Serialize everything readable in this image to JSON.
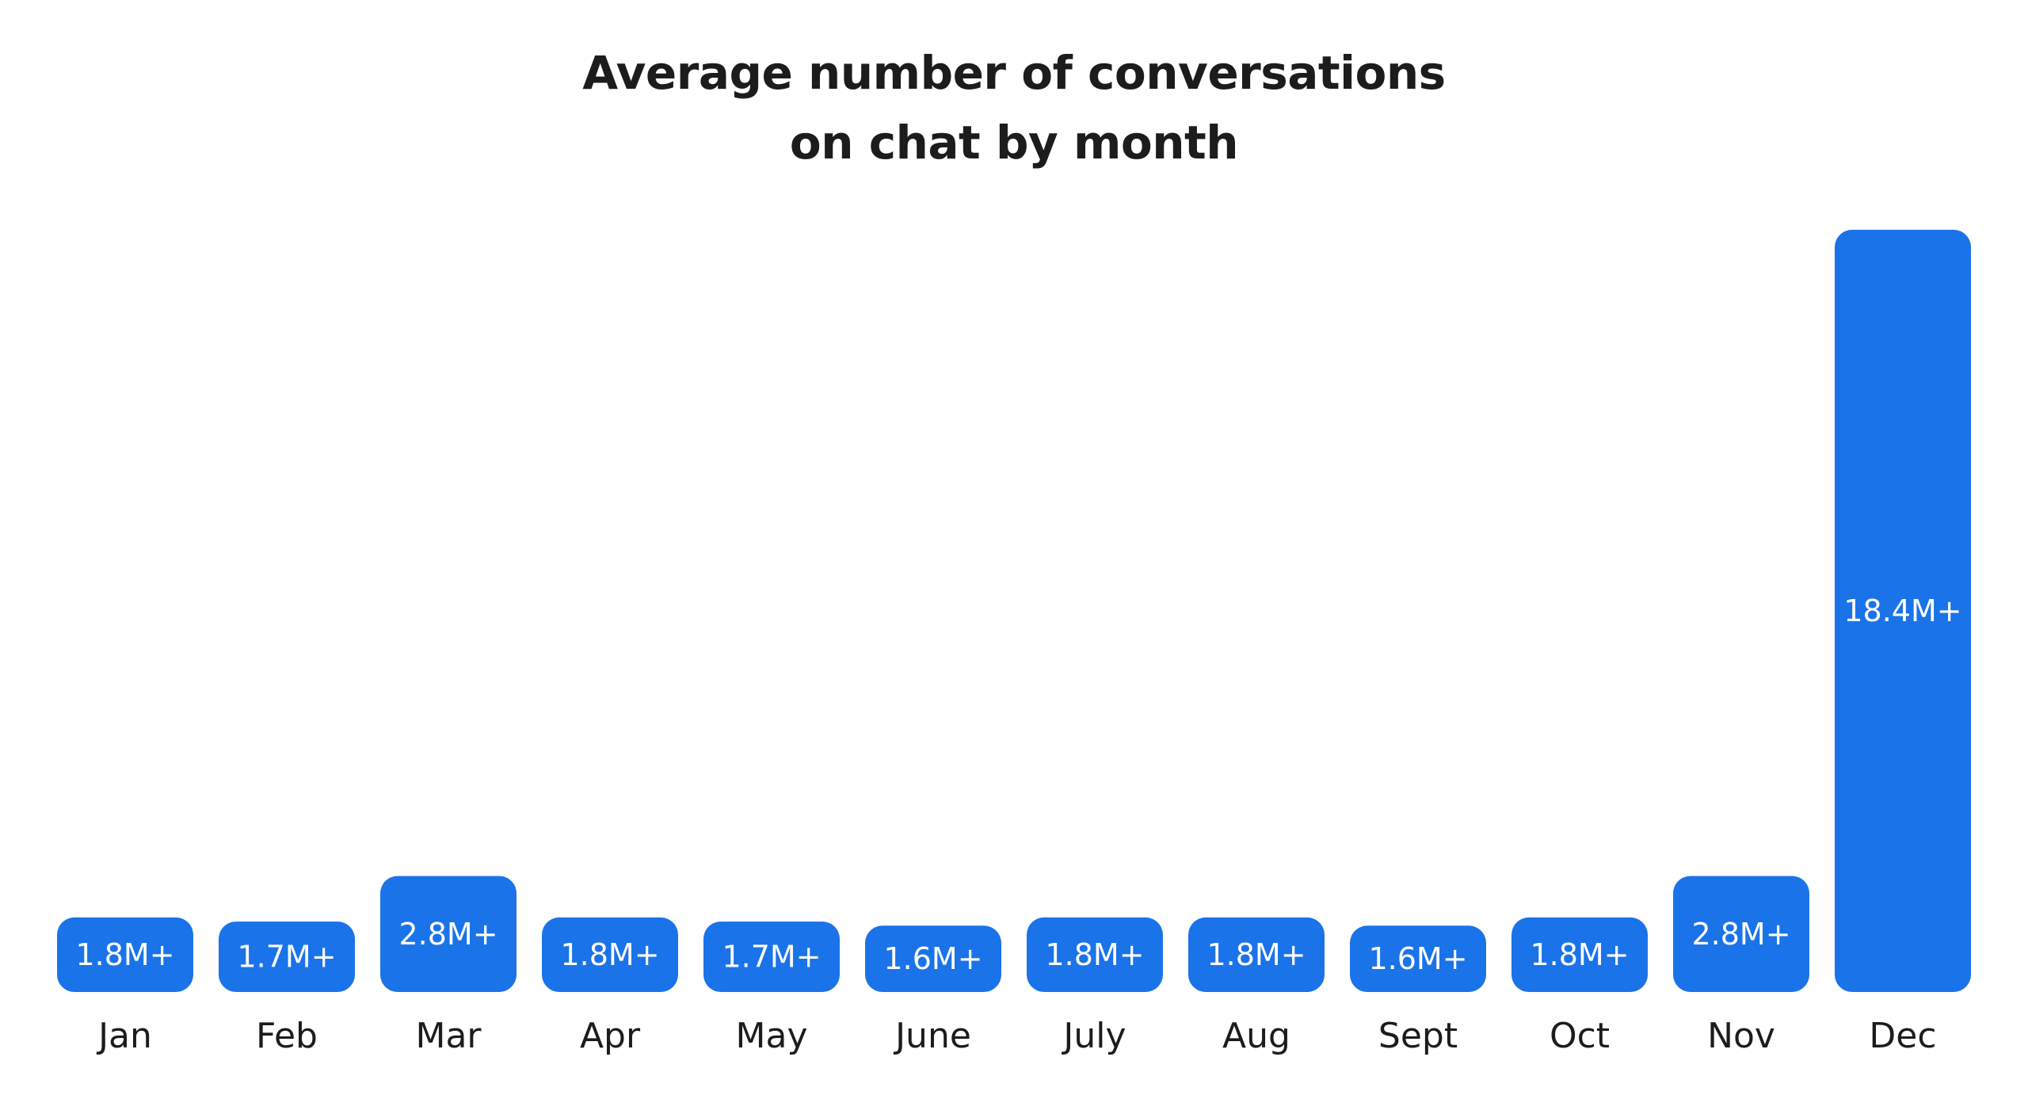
{
  "chart_data": {
    "type": "bar",
    "title_lines": [
      "Average number of conversations",
      "on chat by month"
    ],
    "categories": [
      "Jan",
      "Feb",
      "Mar",
      "Apr",
      "May",
      "June",
      "July",
      "Aug",
      "Sept",
      "Oct",
      "Nov",
      "Dec"
    ],
    "values": [
      1.8,
      1.7,
      2.8,
      1.8,
      1.7,
      1.6,
      1.8,
      1.8,
      1.6,
      1.8,
      2.8,
      18.4
    ],
    "value_labels": [
      "1.8M+",
      "1.7M+",
      "2.8M+",
      "1.8M+",
      "1.7M+",
      "1.6M+",
      "1.8M+",
      "1.8M+",
      "1.6M+",
      "1.8M+",
      "2.8M+",
      "18.4M+"
    ],
    "xlabel": "",
    "ylabel": "",
    "ylim": [
      0,
      18.4
    ],
    "grid": false,
    "bar_color": "#1a73e8",
    "label_color": "#ffffff",
    "text_color": "#1c1c1c",
    "background": "#ffffff"
  }
}
